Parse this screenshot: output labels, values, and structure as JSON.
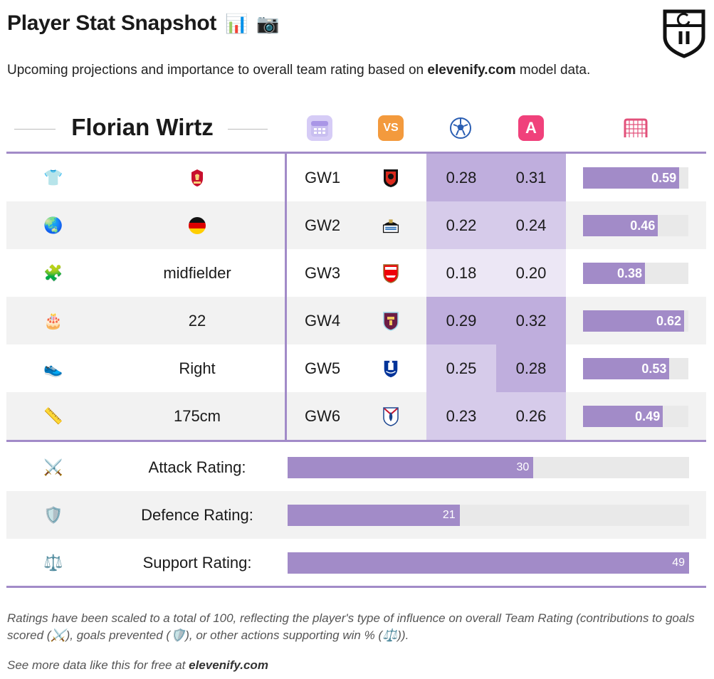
{
  "header": {
    "title": "Player Stat Snapshot",
    "title_icons": [
      "📊",
      "📷"
    ],
    "subtitle_pre": "Upcoming projections and importance to overall team rating based on ",
    "subtitle_site": "elevenify.com",
    "subtitle_post": " model data."
  },
  "player": {
    "name": "Florian Wirtz"
  },
  "columns": [
    {
      "icon": "calendar-icon",
      "glyph": "▦",
      "color": "#c9bff0"
    },
    {
      "icon": "vs-icon",
      "glyph": "VS",
      "color": "#f39a3d"
    },
    {
      "icon": "football-icon",
      "glyph": "⚽",
      "color": "#ffffff"
    },
    {
      "icon": "a-button-icon",
      "glyph": "A",
      "color": "#f0417b"
    },
    {
      "icon": "goal-net-icon",
      "glyph": "⊞",
      "color": "#ffffff"
    }
  ],
  "profile": [
    {
      "icon": "shirt-icon",
      "glyph": "👕",
      "value": "",
      "value_icon": "liverpool-crest"
    },
    {
      "icon": "globe-icon",
      "glyph": "🌏",
      "value": "",
      "value_icon": "germany-flag"
    },
    {
      "icon": "puzzle-icon",
      "glyph": "🧩",
      "value": "midfielder"
    },
    {
      "icon": "cake-icon",
      "glyph": "🎂",
      "value": "22"
    },
    {
      "icon": "shoe-icon",
      "glyph": "👟",
      "value": "Right"
    },
    {
      "icon": "ruler-icon",
      "glyph": "📏",
      "value": "175cm"
    }
  ],
  "fixtures": [
    {
      "gw": "GW1",
      "opponent": "bournemouth-crest",
      "xg": "0.28",
      "xa": "0.31",
      "total": "0.59",
      "total_num": 0.59
    },
    {
      "gw": "GW2",
      "opponent": "newcastle-crest",
      "xg": "0.22",
      "xa": "0.24",
      "total": "0.46",
      "total_num": 0.46
    },
    {
      "gw": "GW3",
      "opponent": "arsenal-crest",
      "xg": "0.18",
      "xa": "0.20",
      "total": "0.38",
      "total_num": 0.38
    },
    {
      "gw": "GW4",
      "opponent": "burnley-crest",
      "xg": "0.29",
      "xa": "0.32",
      "total": "0.62",
      "total_num": 0.62
    },
    {
      "gw": "GW5",
      "opponent": "everton-crest",
      "xg": "0.25",
      "xa": "0.28",
      "total": "0.53",
      "total_num": 0.53
    },
    {
      "gw": "GW6",
      "opponent": "crystal-palace-crest",
      "xg": "0.23",
      "xa": "0.26",
      "total": "0.49",
      "total_num": 0.49
    }
  ],
  "ratings": [
    {
      "icon": "crossed-swords-icon",
      "glyph": "⚔️",
      "label": "Attack Rating:",
      "value": "30",
      "value_num": 30
    },
    {
      "icon": "shield-icon",
      "glyph": "🛡️",
      "label": "Defence Rating:",
      "value": "21",
      "value_num": 21
    },
    {
      "icon": "scales-icon",
      "glyph": "⚖️",
      "label": "Support Rating:",
      "value": "49",
      "value_num": 49
    }
  ],
  "colors": {
    "accent": "#a28bc8",
    "cell_hi": "#bfaedd",
    "cell_mid": "#d6cbea",
    "cell_lo": "#ece7f5"
  },
  "footer": {
    "note_1": "Ratings have been scaled to a total of 100, reflecting the player's type of influence on overall Team Rating (contributions to goals scored (",
    "note_icon_1": "⚔️",
    "note_2": "), goals prevented (",
    "note_icon_2": "🛡️",
    "note_3": "), or other actions supporting win % (",
    "note_icon_3": "⚖️",
    "note_4": ")).",
    "more_pre": "See more data like this for free at ",
    "more_site": "elevenify.com"
  }
}
